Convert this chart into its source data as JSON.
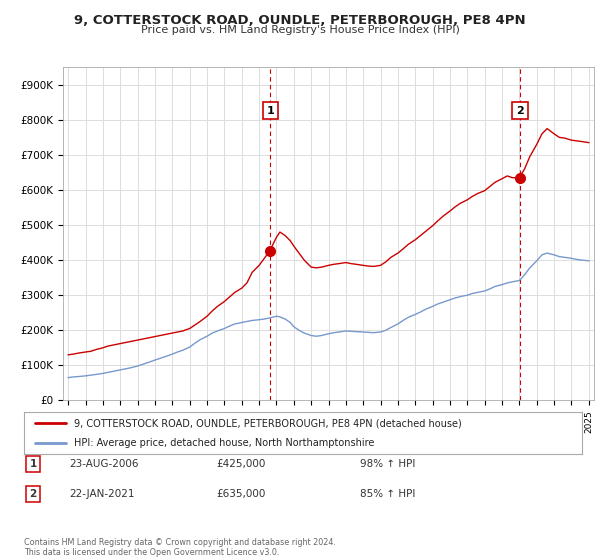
{
  "title": "9, COTTERSTOCK ROAD, OUNDLE, PETERBOROUGH, PE8 4PN",
  "subtitle": "Price paid vs. HM Land Registry's House Price Index (HPI)",
  "ylabel_ticks": [
    "£0",
    "£100K",
    "£200K",
    "£300K",
    "£400K",
    "£500K",
    "£600K",
    "£700K",
    "£800K",
    "£900K"
  ],
  "ytick_values": [
    0,
    100000,
    200000,
    300000,
    400000,
    500000,
    600000,
    700000,
    800000,
    900000
  ],
  "ylim": [
    0,
    950000
  ],
  "xlim_start": 1994.7,
  "xlim_end": 2025.3,
  "xtick_years": [
    1995,
    1996,
    1997,
    1998,
    1999,
    2000,
    2001,
    2002,
    2003,
    2004,
    2005,
    2006,
    2007,
    2008,
    2009,
    2010,
    2011,
    2012,
    2013,
    2014,
    2015,
    2016,
    2017,
    2018,
    2019,
    2020,
    2021,
    2022,
    2023,
    2024,
    2025
  ],
  "background_color": "#ffffff",
  "plot_bg_color": "#ffffff",
  "outer_bg_color": "#f5f5f5",
  "grid_color": "#dddddd",
  "red_line_color": "#cc0000",
  "blue_line_color": "#7799cc",
  "marker1_x": 2006.65,
  "marker1_y": 425000,
  "marker2_x": 2021.05,
  "marker2_y": 635000,
  "marker1_label": "1",
  "marker2_label": "2",
  "dashed_line1_x": 2006.65,
  "dashed_line2_x": 2021.05,
  "legend_red_label": "9, COTTERSTOCK ROAD, OUNDLE, PETERBOROUGH, PE8 4PN (detached house)",
  "legend_blue_label": "HPI: Average price, detached house, North Northamptonshire",
  "footer": "Contains HM Land Registry data © Crown copyright and database right 2024.\nThis data is licensed under the Open Government Licence v3.0.",
  "red_x": [
    1995.0,
    1995.3,
    1995.6,
    1996.0,
    1996.3,
    1996.6,
    1997.0,
    1997.3,
    1997.6,
    1998.0,
    1998.3,
    1998.6,
    1999.0,
    1999.3,
    1999.6,
    2000.0,
    2000.3,
    2000.6,
    2001.0,
    2001.3,
    2001.6,
    2002.0,
    2002.3,
    2002.6,
    2003.0,
    2003.3,
    2003.6,
    2004.0,
    2004.3,
    2004.6,
    2005.0,
    2005.3,
    2005.6,
    2006.0,
    2006.3,
    2006.6,
    2007.0,
    2007.2,
    2007.5,
    2007.8,
    2008.0,
    2008.3,
    2008.6,
    2009.0,
    2009.3,
    2009.6,
    2010.0,
    2010.3,
    2010.6,
    2011.0,
    2011.3,
    2011.6,
    2012.0,
    2012.3,
    2012.6,
    2013.0,
    2013.3,
    2013.6,
    2014.0,
    2014.3,
    2014.6,
    2015.0,
    2015.3,
    2015.6,
    2016.0,
    2016.3,
    2016.6,
    2017.0,
    2017.3,
    2017.6,
    2018.0,
    2018.3,
    2018.6,
    2019.0,
    2019.3,
    2019.6,
    2020.0,
    2020.3,
    2020.6,
    2021.0,
    2021.3,
    2021.6,
    2022.0,
    2022.3,
    2022.6,
    2023.0,
    2023.3,
    2023.6,
    2024.0,
    2024.3,
    2024.6,
    2025.0
  ],
  "red_y": [
    130000,
    132000,
    135000,
    138000,
    140000,
    145000,
    150000,
    155000,
    158000,
    162000,
    165000,
    168000,
    172000,
    175000,
    178000,
    182000,
    185000,
    188000,
    192000,
    195000,
    198000,
    205000,
    215000,
    225000,
    240000,
    255000,
    268000,
    282000,
    295000,
    308000,
    320000,
    335000,
    365000,
    385000,
    405000,
    425000,
    465000,
    480000,
    470000,
    455000,
    440000,
    420000,
    400000,
    380000,
    378000,
    380000,
    385000,
    388000,
    390000,
    393000,
    390000,
    388000,
    385000,
    383000,
    382000,
    385000,
    395000,
    408000,
    420000,
    432000,
    445000,
    458000,
    470000,
    482000,
    498000,
    512000,
    525000,
    540000,
    552000,
    562000,
    572000,
    582000,
    590000,
    598000,
    610000,
    622000,
    632000,
    640000,
    635000,
    635000,
    660000,
    695000,
    730000,
    760000,
    775000,
    760000,
    750000,
    748000,
    742000,
    740000,
    738000,
    735000
  ],
  "blue_x": [
    1995.0,
    1995.3,
    1995.6,
    1996.0,
    1996.3,
    1996.6,
    1997.0,
    1997.3,
    1997.6,
    1998.0,
    1998.3,
    1998.6,
    1999.0,
    1999.3,
    1999.6,
    2000.0,
    2000.3,
    2000.6,
    2001.0,
    2001.3,
    2001.6,
    2002.0,
    2002.3,
    2002.6,
    2003.0,
    2003.3,
    2003.6,
    2004.0,
    2004.3,
    2004.6,
    2005.0,
    2005.3,
    2005.6,
    2006.0,
    2006.3,
    2006.6,
    2007.0,
    2007.2,
    2007.5,
    2007.8,
    2008.0,
    2008.3,
    2008.6,
    2009.0,
    2009.3,
    2009.6,
    2010.0,
    2010.3,
    2010.6,
    2011.0,
    2011.3,
    2011.6,
    2012.0,
    2012.3,
    2012.6,
    2013.0,
    2013.3,
    2013.6,
    2014.0,
    2014.3,
    2014.6,
    2015.0,
    2015.3,
    2015.6,
    2016.0,
    2016.3,
    2016.6,
    2017.0,
    2017.3,
    2017.6,
    2018.0,
    2018.3,
    2018.6,
    2019.0,
    2019.3,
    2019.6,
    2020.0,
    2020.3,
    2020.6,
    2021.0,
    2021.3,
    2021.6,
    2022.0,
    2022.3,
    2022.6,
    2023.0,
    2023.3,
    2023.6,
    2024.0,
    2024.3,
    2024.6,
    2025.0
  ],
  "blue_y": [
    65000,
    67000,
    68000,
    70000,
    72000,
    74000,
    77000,
    80000,
    83000,
    87000,
    90000,
    93000,
    98000,
    103000,
    108000,
    115000,
    120000,
    125000,
    132000,
    138000,
    143000,
    152000,
    163000,
    173000,
    183000,
    192000,
    198000,
    205000,
    212000,
    218000,
    222000,
    225000,
    228000,
    230000,
    232000,
    235000,
    240000,
    238000,
    232000,
    222000,
    210000,
    200000,
    192000,
    185000,
    183000,
    185000,
    190000,
    193000,
    195000,
    198000,
    197000,
    196000,
    195000,
    194000,
    193000,
    195000,
    200000,
    208000,
    218000,
    228000,
    237000,
    245000,
    252000,
    260000,
    268000,
    275000,
    280000,
    287000,
    292000,
    296000,
    300000,
    305000,
    308000,
    312000,
    318000,
    325000,
    330000,
    335000,
    338000,
    342000,
    358000,
    378000,
    398000,
    415000,
    420000,
    415000,
    410000,
    408000,
    405000,
    402000,
    400000,
    398000
  ]
}
